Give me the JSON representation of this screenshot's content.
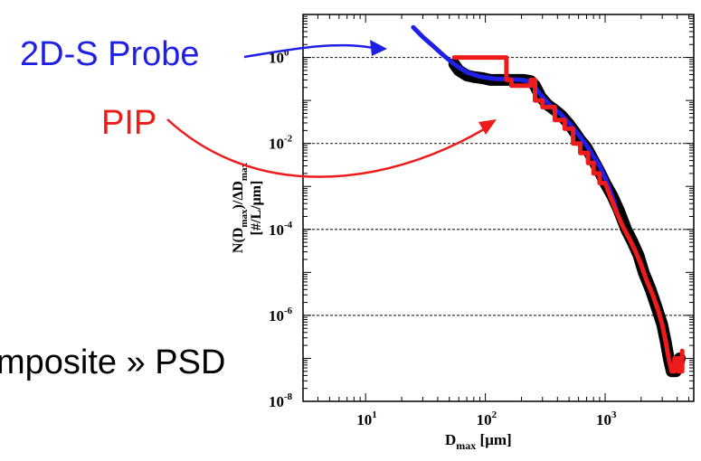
{
  "annotations": {
    "probe_2ds": "2D-S Probe",
    "pip": "PIP",
    "composite_text": "mposite » PSD"
  },
  "colors": {
    "probe_2ds": "#1f1fe6",
    "pip": "#ee1b1b",
    "composite": "#000000",
    "dashed_lines": "#333333"
  },
  "chart_data": {
    "type": "line",
    "x_scale": "log",
    "y_scale": "log",
    "xlim": [
      3,
      5500
    ],
    "ylim": [
      1e-08,
      10
    ],
    "x_ticks": [
      {
        "value": 10,
        "base": "10",
        "exp": "1"
      },
      {
        "value": 100,
        "base": "10",
        "exp": "2"
      },
      {
        "value": 1000,
        "base": "10",
        "exp": "3"
      }
    ],
    "y_ticks": [
      {
        "value": 1,
        "base": "10",
        "exp": "0"
      },
      {
        "value": 0.01,
        "base": "10",
        "exp": "-2"
      },
      {
        "value": 0.0001,
        "base": "10",
        "exp": "-4"
      },
      {
        "value": 1e-06,
        "base": "10",
        "exp": "-6"
      },
      {
        "value": 1e-08,
        "base": "10",
        "exp": "-8"
      }
    ],
    "dashed_gridlines_y": [
      1,
      0.01,
      0.0001,
      1e-06
    ],
    "xlabel": {
      "main": "D",
      "sub": "max",
      "unit": " [μm]"
    },
    "ylabel": {
      "line1_a": "N(D",
      "line1_sub1": "max",
      "line1_b": ")/ΔD",
      "line1_sub2": "max",
      "line2": "[#/L/μm]"
    },
    "series": [
      {
        "key": "composite",
        "points": [
          [
            55,
            0.7
          ],
          [
            60,
            0.5
          ],
          [
            70,
            0.38
          ],
          [
            80,
            0.35
          ],
          [
            95,
            0.33
          ],
          [
            110,
            0.3
          ],
          [
            130,
            0.3
          ],
          [
            150,
            0.3
          ],
          [
            180,
            0.3
          ],
          [
            210,
            0.3
          ],
          [
            240,
            0.28
          ],
          [
            260,
            0.22
          ],
          [
            290,
            0.12
          ],
          [
            330,
            0.08
          ],
          [
            380,
            0.06
          ],
          [
            430,
            0.045
          ],
          [
            500,
            0.028
          ],
          [
            560,
            0.018
          ],
          [
            620,
            0.012
          ],
          [
            700,
            0.008
          ],
          [
            800,
            0.004
          ],
          [
            900,
            0.0022
          ],
          [
            1000,
            0.0012
          ],
          [
            1150,
            0.0006
          ],
          [
            1300,
            0.00028
          ],
          [
            1500,
            0.0001
          ],
          [
            1700,
            5e-05
          ],
          [
            1900,
            2.5e-05
          ],
          [
            2100,
            1e-05
          ],
          [
            2400,
            4e-06
          ],
          [
            2700,
            1.5e-06
          ],
          [
            3000,
            6e-07
          ],
          [
            3200,
            2.5e-07
          ],
          [
            3400,
            1e-07
          ],
          [
            3600,
            5e-08
          ],
          [
            3900,
            5e-08
          ],
          [
            4200,
            1e-07
          ]
        ]
      },
      {
        "key": "probe_2ds",
        "points": [
          [
            25,
            5
          ],
          [
            30,
            3
          ],
          [
            37,
            1.8
          ],
          [
            45,
            1.1
          ],
          [
            55,
            0.7
          ],
          [
            70,
            0.45
          ],
          [
            90,
            0.36
          ],
          [
            120,
            0.32
          ],
          [
            160,
            0.31
          ],
          [
            200,
            0.3
          ],
          [
            230,
            0.28
          ],
          [
            260,
            0.2
          ],
          [
            300,
            0.12
          ],
          [
            360,
            0.07
          ],
          [
            420,
            0.05
          ],
          [
            500,
            0.03
          ],
          [
            600,
            0.016
          ],
          [
            700,
            0.009
          ],
          [
            800,
            0.005
          ],
          [
            900,
            0.003
          ],
          [
            1000,
            0.0016
          ],
          [
            1100,
            0.0008
          ],
          [
            1200,
            0.0004
          ],
          [
            1250,
            0.00025
          ]
        ]
      },
      {
        "key": "pip",
        "points": [
          [
            55,
            1
          ],
          [
            150,
            1
          ],
          [
            150,
            0.3
          ],
          [
            165,
            0.3
          ],
          [
            165,
            0.22
          ],
          [
            240,
            0.22
          ],
          [
            240,
            0.3
          ],
          [
            260,
            0.3
          ],
          [
            260,
            0.1
          ],
          [
            300,
            0.1
          ],
          [
            300,
            0.07
          ],
          [
            380,
            0.07
          ],
          [
            380,
            0.035
          ],
          [
            460,
            0.035
          ],
          [
            460,
            0.022
          ],
          [
            540,
            0.022
          ],
          [
            540,
            0.01
          ],
          [
            620,
            0.01
          ],
          [
            620,
            0.006
          ],
          [
            720,
            0.006
          ],
          [
            720,
            0.0035
          ],
          [
            800,
            0.0035
          ],
          [
            800,
            0.002
          ],
          [
            900,
            0.002
          ],
          [
            900,
            0.0012
          ],
          [
            1000,
            0.0012
          ],
          [
            1100,
            0.0006
          ],
          [
            1250,
            0.00025
          ],
          [
            1400,
            0.00012
          ],
          [
            1600,
            6e-05
          ],
          [
            1800,
            3e-05
          ],
          [
            2000,
            1.5e-05
          ],
          [
            2200,
            7e-06
          ],
          [
            2500,
            3e-06
          ],
          [
            2800,
            1.2e-06
          ],
          [
            3000,
            6e-07
          ],
          [
            3200,
            2.5e-07
          ],
          [
            3400,
            1e-07
          ],
          [
            3600,
            5e-08
          ],
          [
            3800,
            5e-08
          ],
          [
            3800,
            1e-07
          ],
          [
            4100,
            1e-07
          ],
          [
            4100,
            5e-08
          ],
          [
            4400,
            5e-08
          ],
          [
            4400,
            1.5e-07
          ]
        ]
      }
    ]
  }
}
